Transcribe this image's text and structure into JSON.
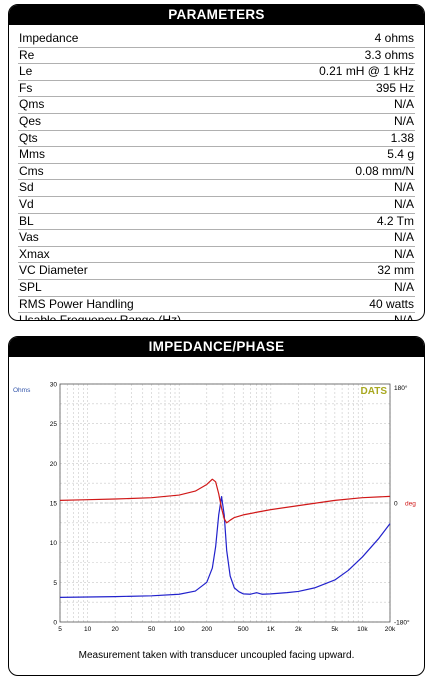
{
  "parameters": {
    "title": "PARAMETERS",
    "rows": [
      {
        "label": "Impedance",
        "value": "4 ohms"
      },
      {
        "label": "Re",
        "value": "3.3 ohms"
      },
      {
        "label": "Le",
        "value": "0.21 mH @ 1 kHz"
      },
      {
        "label": "Fs",
        "value": "395 Hz"
      },
      {
        "label": "Qms",
        "value": "N/A"
      },
      {
        "label": "Qes",
        "value": "N/A"
      },
      {
        "label": "Qts",
        "value": "1.38"
      },
      {
        "label": "Mms",
        "value": "5.4 g"
      },
      {
        "label": "Cms",
        "value": "0.08 mm/N"
      },
      {
        "label": "Sd",
        "value": "N/A"
      },
      {
        "label": "Vd",
        "value": "N/A"
      },
      {
        "label": "BL",
        "value": "4.2 Tm"
      },
      {
        "label": "Vas",
        "value": "N/A"
      },
      {
        "label": "Xmax",
        "value": "N/A"
      },
      {
        "label": "VC Diameter",
        "value": "32 mm"
      },
      {
        "label": "SPL",
        "value": "N/A"
      },
      {
        "label": "RMS Power Handling",
        "value": "40 watts"
      },
      {
        "label": "Usable Frequency Range (Hz)",
        "value": "N/A"
      }
    ]
  },
  "impedance_panel": {
    "title": "IMPEDANCE/PHASE",
    "caption": "Measurement taken with transducer uncoupled facing upward.",
    "brand": "DATS",
    "colors": {
      "impedance": "#2222cc",
      "phase": "#d01818",
      "brand": "#a8a820",
      "grid": "#c8c8c8",
      "left_axis_label": "#3355aa"
    }
  },
  "chart_data": {
    "type": "line",
    "xscale": "log",
    "xlim": [
      5,
      20000
    ],
    "ylim": [
      0,
      30
    ],
    "ylabel": "Ohms",
    "x_tick_labels": [
      "5",
      "10",
      "20",
      "50",
      "100",
      "200",
      "500",
      "1K",
      "2k",
      "5k",
      "10k",
      "20k"
    ],
    "x_tick_values": [
      5,
      10,
      20,
      50,
      100,
      200,
      500,
      1000,
      2000,
      5000,
      10000,
      20000
    ],
    "y_tick_labels": [
      "0",
      "5",
      "10",
      "15",
      "20",
      "25",
      "30"
    ],
    "y_tick_values": [
      0,
      5,
      10,
      15,
      20,
      25,
      30
    ],
    "right_axis": {
      "ylim": [
        -180,
        180
      ],
      "unit_label": "deg",
      "tick_labels": [
        "180°",
        "0",
        "-180°"
      ],
      "tick_values": [
        180,
        0,
        -180
      ]
    },
    "grid": true,
    "series": [
      {
        "name": "Impedance",
        "axis": "left",
        "x": [
          5,
          10,
          20,
          50,
          100,
          150,
          200,
          230,
          250,
          270,
          290,
          310,
          330,
          360,
          400,
          450,
          500,
          600,
          700,
          800,
          1000,
          1500,
          2000,
          3000,
          5000,
          7000,
          10000,
          15000,
          20000
        ],
        "values": [
          3.1,
          3.15,
          3.2,
          3.3,
          3.5,
          3.9,
          5.0,
          6.8,
          9.5,
          13.5,
          15.8,
          13.5,
          9.0,
          5.8,
          4.3,
          3.8,
          3.55,
          3.5,
          3.7,
          3.5,
          3.55,
          3.7,
          3.85,
          4.3,
          5.3,
          6.5,
          8.2,
          10.5,
          12.4
        ]
      },
      {
        "name": "Phase",
        "axis": "right",
        "x": [
          5,
          10,
          20,
          50,
          100,
          150,
          200,
          230,
          250,
          270,
          290,
          310,
          330,
          360,
          400,
          500,
          700,
          1000,
          2000,
          5000,
          10000,
          20000
        ],
        "values": [
          4,
          5,
          6,
          8,
          12,
          18,
          28,
          36,
          32,
          14,
          -8,
          -24,
          -30,
          -26,
          -22,
          -18,
          -14,
          -10,
          -4,
          4,
          8,
          10
        ]
      }
    ]
  }
}
